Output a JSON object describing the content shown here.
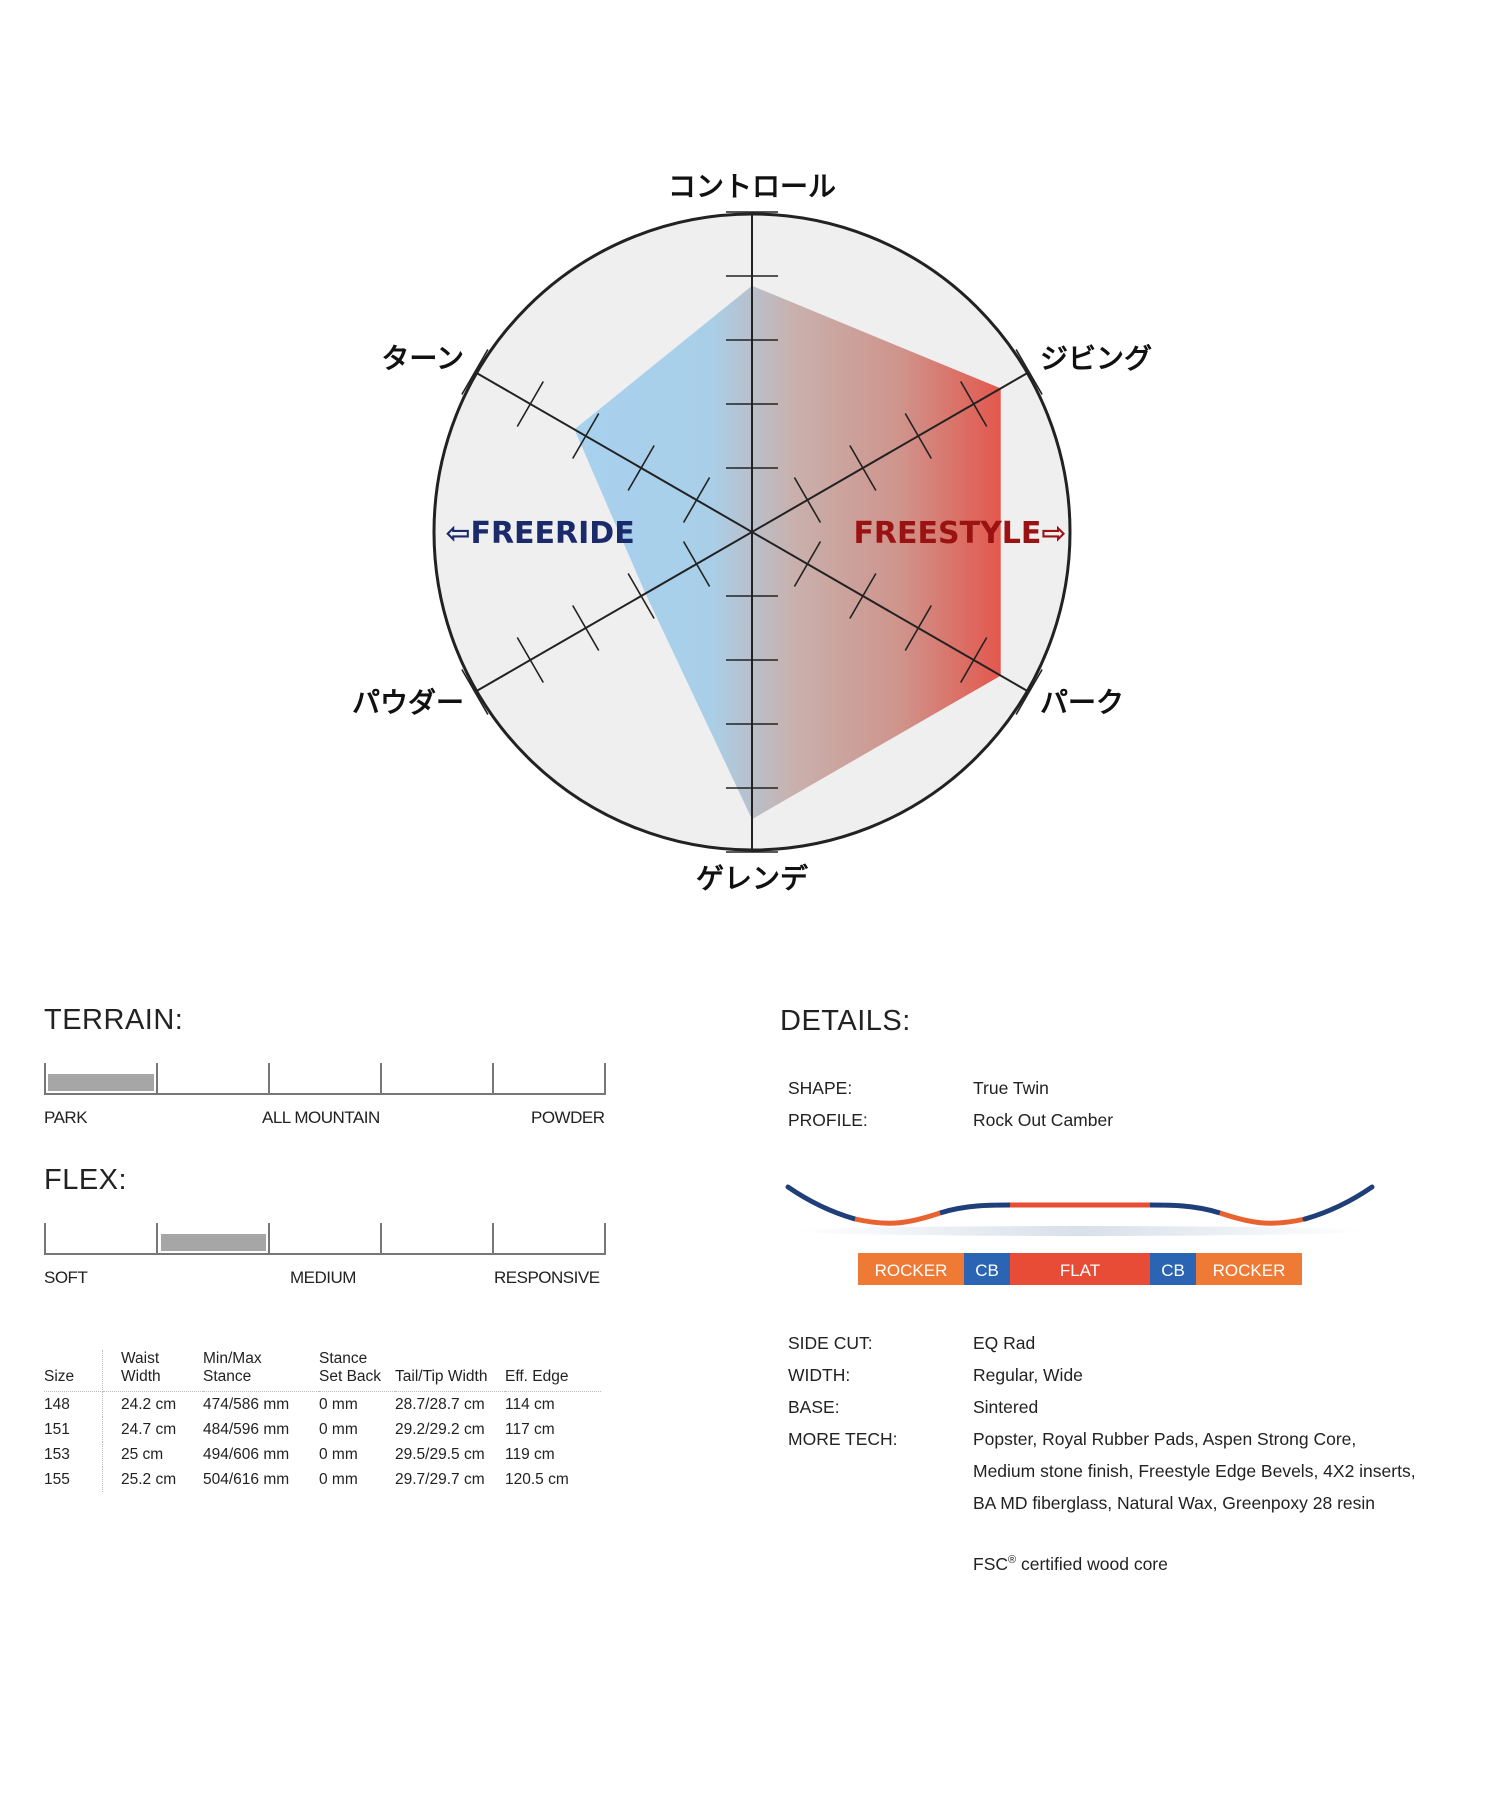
{
  "chart_data": {
    "type": "radar",
    "axes": [
      "コントロール",
      "ジビング",
      "パーク",
      "ゲレンデ",
      "パウダー",
      "ターン"
    ],
    "scale_max": 8,
    "values": [
      6,
      7,
      7,
      7,
      3,
      5
    ],
    "styles": {
      "left": "⇦FREERIDE",
      "right": "FREESTYLE⇨"
    },
    "colors": {
      "freeride": "#1b2a6b",
      "freestyle": "#9b1212",
      "fill_left": "#a8d1ee",
      "fill_mid": "#c9b0ac",
      "fill_right": "#e4554a",
      "disc": "#efefef"
    }
  },
  "terrain": {
    "title": "TERRAIN:",
    "labels": [
      "PARK",
      "ALL MOUNTAIN",
      "POWDER"
    ],
    "range": [
      0,
      1
    ]
  },
  "flex": {
    "title": "FLEX:",
    "labels": [
      "SOFT",
      "MEDIUM",
      "RESPONSIVE"
    ],
    "range": [
      1,
      2
    ]
  },
  "specs": {
    "headers": [
      [
        "Size"
      ],
      [
        "Waist",
        "Width"
      ],
      [
        "Min/Max",
        "Stance"
      ],
      [
        "Stance",
        "Set Back"
      ],
      [
        "Tail/Tip Width"
      ],
      [
        "Eff. Edge"
      ]
    ],
    "rows": [
      [
        "148",
        "24.2 cm",
        "474/586 mm",
        "0 mm",
        "28.7/28.7 cm",
        "114 cm"
      ],
      [
        "151",
        "24.7 cm",
        "484/596 mm",
        "0 mm",
        "29.2/29.2 cm",
        "117 cm"
      ],
      [
        "153",
        "25 cm",
        "494/606 mm",
        "0 mm",
        "29.5/29.5 cm",
        "119 cm"
      ],
      [
        "155",
        "25.2 cm",
        "504/616 mm",
        "0 mm",
        "29.7/29.7 cm",
        "120.5 cm"
      ]
    ]
  },
  "details": {
    "title": "DETAILS:",
    "shape": {
      "key": "SHAPE:",
      "value": "True Twin"
    },
    "profile": {
      "key": "PROFILE:",
      "value": "Rock Out Camber"
    },
    "profile_segments": [
      "ROCKER",
      "CB",
      "FLAT",
      "CB",
      "ROCKER"
    ],
    "side_cut": {
      "key": "SIDE CUT:",
      "value": "EQ Rad"
    },
    "width": {
      "key": "WIDTH:",
      "value": "Regular, Wide"
    },
    "base": {
      "key": "BASE:",
      "value": "Sintered"
    },
    "more_tech": {
      "key": "MORE TECH:",
      "lines": [
        "Popster, Royal Rubber Pads, Aspen Strong Core,",
        "Medium stone finish, Freestyle Edge Bevels, 4X2 inserts,",
        "BA MD fiberglass, Natural Wax, Greenpoxy 28 resin"
      ]
    },
    "fsc": {
      "prefix": "FSC",
      "mark": "®",
      "text": "certified wood core"
    }
  }
}
